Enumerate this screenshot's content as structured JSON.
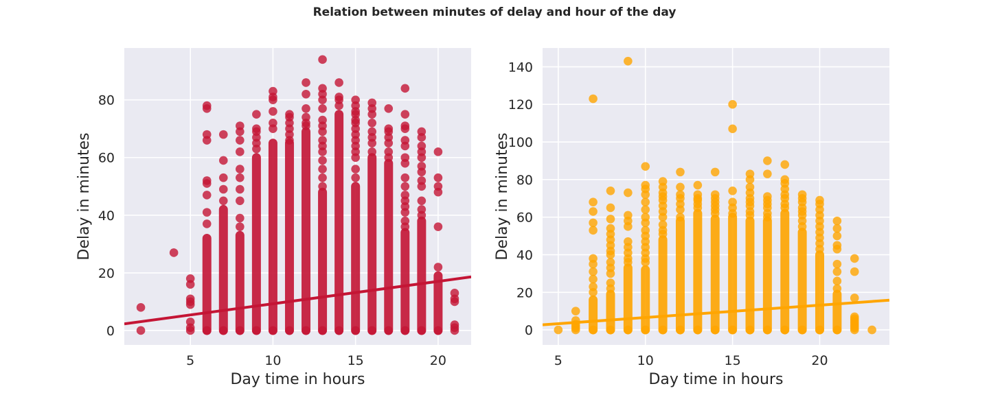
{
  "figure": {
    "title": "Relation between minutes of delay and hour of the day"
  },
  "chart_data": [
    {
      "type": "scatter",
      "title": "",
      "xlabel": "Day time in hours",
      "ylabel": "Delay in minutes",
      "xlim": [
        1,
        22
      ],
      "ylim": [
        -5,
        98
      ],
      "xticks": [
        5,
        10,
        15,
        20
      ],
      "yticks": [
        0,
        20,
        40,
        60,
        80
      ],
      "grid": true,
      "color": "#c41535",
      "regression": {
        "x0": 1,
        "y0": 2.3,
        "x1": 22,
        "y1": 18.6
      },
      "columns": [
        {
          "x": 6,
          "dense_max": 32,
          "outliers": [
            37,
            41,
            47,
            51,
            52,
            66,
            68,
            77,
            78
          ]
        },
        {
          "x": 7,
          "dense_max": 42,
          "outliers": [
            45,
            49,
            53,
            59,
            68
          ]
        },
        {
          "x": 8,
          "dense_max": 33,
          "outliers": [
            36,
            39,
            45,
            49,
            53,
            56,
            62,
            66,
            69,
            71
          ]
        },
        {
          "x": 9,
          "dense_max": 60,
          "outliers": [
            63,
            65,
            67,
            69,
            70,
            75
          ]
        },
        {
          "x": 10,
          "dense_max": 65,
          "outliers": [
            70,
            72,
            76,
            80,
            81,
            83
          ]
        },
        {
          "x": 11,
          "dense_max": 65,
          "outliers": [
            66,
            68,
            70,
            72,
            74,
            75
          ]
        },
        {
          "x": 12,
          "dense_max": 69,
          "outliers": [
            71,
            72,
            74,
            77,
            82,
            86
          ]
        },
        {
          "x": 13,
          "dense_max": 48,
          "outliers": [
            50,
            53,
            56,
            59,
            62,
            64,
            66,
            69,
            71,
            73,
            77,
            80,
            82,
            84,
            94
          ]
        },
        {
          "x": 14,
          "dense_max": 75,
          "outliers": [
            78,
            80,
            81,
            86
          ]
        },
        {
          "x": 15,
          "dense_max": 50,
          "outliers": [
            53,
            56,
            60,
            62,
            64,
            66,
            68,
            70,
            72,
            73,
            75,
            76,
            78,
            80
          ]
        },
        {
          "x": 16,
          "dense_max": 60,
          "outliers": [
            62,
            65,
            67,
            69,
            72,
            75,
            77,
            79
          ]
        },
        {
          "x": 17,
          "dense_max": 58,
          "outliers": [
            60,
            62,
            65,
            67,
            69,
            70,
            77
          ]
        },
        {
          "x": 18,
          "dense_max": 34,
          "outliers": [
            36,
            38,
            41,
            43,
            45,
            47,
            50,
            53,
            58,
            60,
            64,
            66,
            70,
            71,
            75,
            84
          ]
        },
        {
          "x": 19,
          "dense_max": 38,
          "outliers": [
            40,
            42,
            45,
            50,
            52,
            55,
            57,
            60,
            62,
            64,
            67,
            69
          ]
        },
        {
          "x": 20,
          "dense_max": 19,
          "outliers": [
            22,
            36,
            48,
            50,
            53,
            62
          ]
        },
        {
          "x": 21,
          "dense_max": 0,
          "outliers": [
            1,
            2,
            10,
            11,
            13
          ]
        }
      ],
      "points": [
        {
          "x": 2,
          "y": 0
        },
        {
          "x": 2,
          "y": 8
        },
        {
          "x": 4,
          "y": 27
        },
        {
          "x": 5,
          "y": 0
        },
        {
          "x": 5,
          "y": 1
        },
        {
          "x": 5,
          "y": 3
        },
        {
          "x": 5,
          "y": 9
        },
        {
          "x": 5,
          "y": 10
        },
        {
          "x": 5,
          "y": 11
        },
        {
          "x": 5,
          "y": 16
        },
        {
          "x": 5,
          "y": 18
        }
      ]
    },
    {
      "type": "scatter",
      "title": "",
      "xlabel": "Day time in hours",
      "ylabel": "Delay in minutes",
      "xlim": [
        4.1,
        24
      ],
      "ylim": [
        -8,
        150
      ],
      "xticks": [
        5,
        10,
        15,
        20
      ],
      "yticks": [
        0,
        20,
        40,
        60,
        80,
        100,
        120,
        140
      ],
      "grid": true,
      "color": "#ffa500",
      "regression": {
        "x0": 4.1,
        "y0": 2.7,
        "x1": 24,
        "y1": 15.8
      },
      "columns": [
        {
          "x": 6,
          "dense_max": 0,
          "outliers": [
            1,
            2,
            3,
            5,
            10
          ]
        },
        {
          "x": 7,
          "dense_max": 16,
          "outliers": [
            20,
            23,
            27,
            31,
            35,
            38,
            53,
            57,
            63,
            68,
            123
          ]
        },
        {
          "x": 8,
          "dense_max": 19,
          "outliers": [
            22,
            25,
            30,
            33,
            36,
            40,
            42,
            45,
            48,
            51,
            54,
            59,
            65,
            74
          ]
        },
        {
          "x": 9,
          "dense_max": 33,
          "outliers": [
            36,
            38,
            41,
            44,
            47,
            55,
            58,
            61,
            73,
            143
          ]
        },
        {
          "x": 10,
          "dense_max": 32,
          "outliers": [
            36,
            38,
            41,
            44,
            47,
            50,
            53,
            57,
            60,
            64,
            68,
            72,
            75,
            77,
            87
          ]
        },
        {
          "x": 11,
          "dense_max": 48,
          "outliers": [
            51,
            53,
            56,
            60,
            63,
            66,
            69,
            71,
            73,
            76,
            79
          ]
        },
        {
          "x": 12,
          "dense_max": 58,
          "outliers": [
            60,
            64,
            67,
            70,
            72,
            76,
            84
          ]
        },
        {
          "x": 13,
          "dense_max": 62,
          "outliers": [
            65,
            67,
            69,
            70,
            72,
            77
          ]
        },
        {
          "x": 14,
          "dense_max": 59,
          "outliers": [
            62,
            64,
            66,
            68,
            70,
            72,
            84
          ]
        },
        {
          "x": 15,
          "dense_max": 60,
          "outliers": [
            62,
            65,
            68,
            74,
            107,
            120
          ]
        },
        {
          "x": 16,
          "dense_max": 58,
          "outliers": [
            61,
            63,
            66,
            68,
            70,
            73,
            76,
            80,
            83
          ]
        },
        {
          "x": 17,
          "dense_max": 58,
          "outliers": [
            60,
            62,
            65,
            67,
            69,
            71,
            83,
            90
          ]
        },
        {
          "x": 18,
          "dense_max": 62,
          "outliers": [
            65,
            67,
            70,
            72,
            75,
            78,
            80,
            88
          ]
        },
        {
          "x": 19,
          "dense_max": 52,
          "outliers": [
            55,
            58,
            61,
            63,
            65,
            68,
            70,
            72
          ]
        },
        {
          "x": 20,
          "dense_max": 40,
          "outliers": [
            43,
            46,
            49,
            52,
            55,
            58,
            61,
            64,
            67,
            69
          ]
        },
        {
          "x": 21,
          "dense_max": 19,
          "outliers": [
            22,
            26,
            31,
            35,
            43,
            45,
            50,
            54,
            58
          ]
        },
        {
          "x": 22,
          "dense_max": 0,
          "outliers": [
            1,
            2,
            3,
            4,
            5,
            6,
            7,
            17,
            31,
            38
          ]
        }
      ],
      "points": [
        {
          "x": 5,
          "y": 0
        },
        {
          "x": 23,
          "y": 0
        }
      ]
    }
  ]
}
